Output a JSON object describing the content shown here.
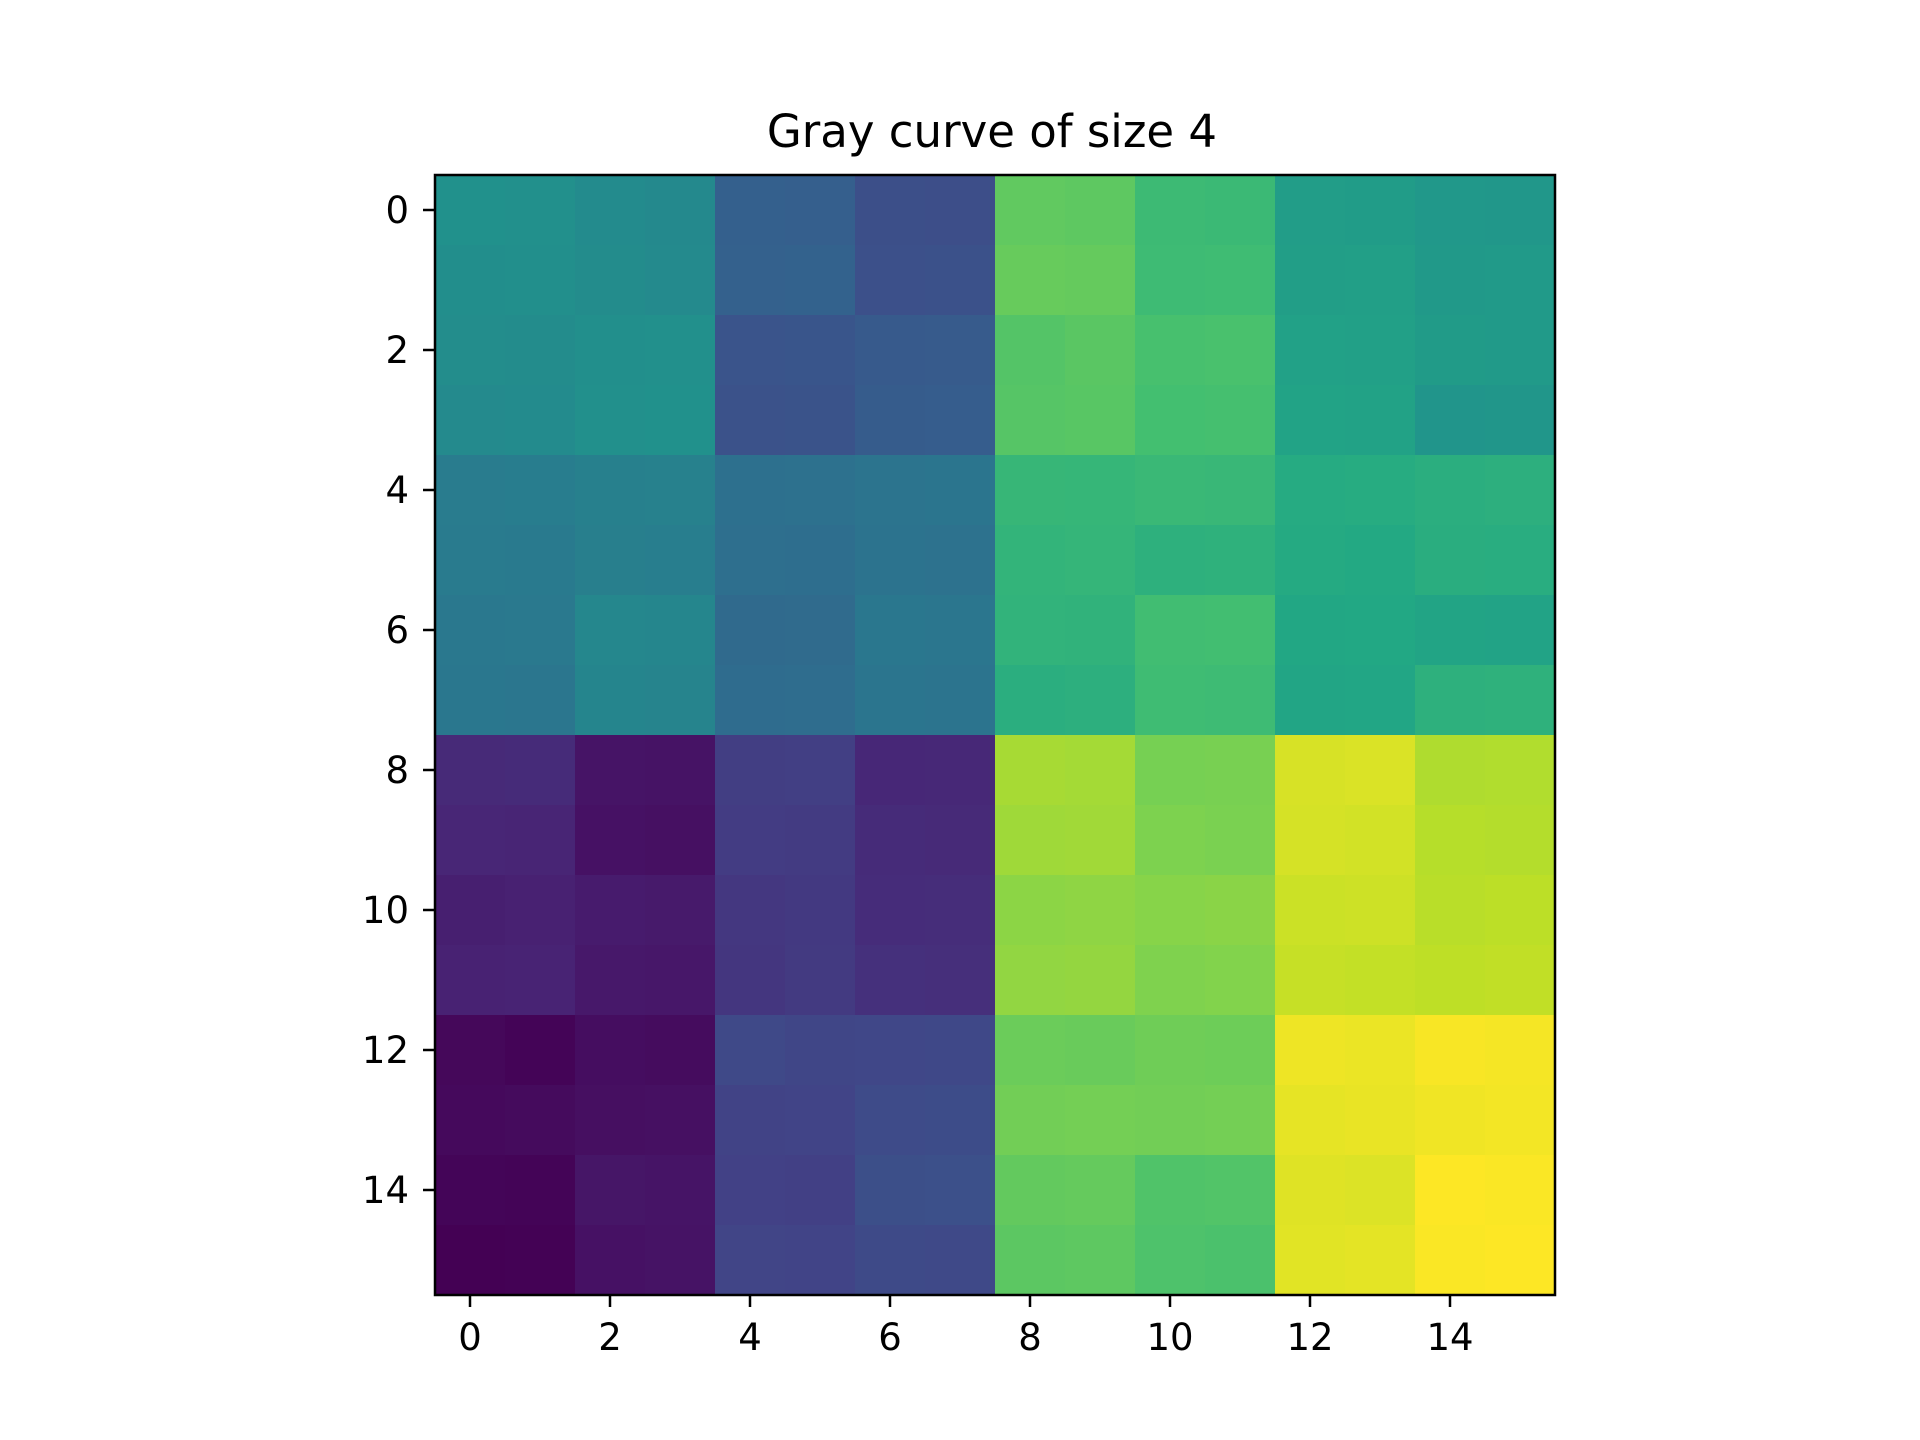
{
  "chart_data": {
    "type": "heatmap",
    "title": "Gray curve of size 4",
    "xlabel": "",
    "ylabel": "",
    "colormap": "viridis",
    "grid": false,
    "value_range": [
      0,
      255
    ],
    "x_ticks": [
      0,
      2,
      4,
      6,
      8,
      10,
      12,
      14
    ],
    "y_ticks": [
      0,
      2,
      4,
      6,
      8,
      10,
      12,
      14
    ],
    "xlim": [
      -0.5,
      15.5
    ],
    "ylim": [
      15.5,
      -0.5
    ],
    "rows": 16,
    "cols": 16,
    "values": [
      [
        127,
        126,
        121,
        119,
        78,
        77,
        61,
        60,
        192,
        191,
        173,
        172,
        141,
        140,
        135,
        134
      ],
      [
        124,
        125,
        122,
        120,
        79,
        80,
        62,
        63,
        195,
        194,
        174,
        175,
        142,
        143,
        136,
        137
      ],
      [
        123,
        122,
        125,
        126,
        66,
        67,
        72,
        73,
        186,
        189,
        180,
        181,
        145,
        144,
        139,
        138
      ],
      [
        120,
        121,
        126,
        127,
        64,
        65,
        74,
        75,
        187,
        188,
        178,
        179,
        147,
        146,
        132,
        133
      ],
      [
        106,
        107,
        110,
        111,
        94,
        95,
        98,
        99,
        169,
        168,
        171,
        170,
        156,
        157,
        160,
        161
      ],
      [
        105,
        104,
        109,
        108,
        93,
        92,
        97,
        96,
        166,
        167,
        162,
        163,
        155,
        154,
        159,
        158
      ],
      [
        102,
        103,
        117,
        116,
        88,
        89,
        101,
        100,
        165,
        164,
        176,
        177,
        152,
        153,
        149,
        148
      ],
      [
        101,
        100,
        115,
        114,
        90,
        91,
        99,
        98,
        160,
        161,
        175,
        174,
        150,
        151,
        162,
        163
      ],
      [
        30,
        31,
        14,
        13,
        46,
        47,
        28,
        29,
        221,
        220,
        202,
        203,
        240,
        241,
        224,
        225
      ],
      [
        27,
        26,
        12,
        11,
        45,
        44,
        31,
        30,
        218,
        219,
        205,
        204,
        239,
        238,
        227,
        226
      ],
      [
        22,
        23,
        19,
        18,
        41,
        42,
        32,
        33,
        211,
        212,
        209,
        210,
        235,
        236,
        228,
        229
      ],
      [
        24,
        25,
        17,
        16,
        40,
        43,
        35,
        34,
        213,
        214,
        206,
        207,
        233,
        232,
        230,
        231
      ],
      [
        5,
        2,
        9,
        8,
        56,
        53,
        54,
        55,
        197,
        196,
        199,
        198,
        249,
        248,
        253,
        252
      ],
      [
        6,
        7,
        10,
        11,
        50,
        51,
        58,
        59,
        200,
        201,
        200,
        201,
        246,
        247,
        250,
        251
      ],
      [
        3,
        2,
        15,
        14,
        49,
        48,
        61,
        62,
        193,
        194,
        184,
        185,
        243,
        242,
        255,
        254
      ],
      [
        0,
        1,
        12,
        13,
        52,
        51,
        57,
        56,
        190,
        191,
        183,
        182,
        244,
        245,
        254,
        255
      ]
    ]
  }
}
